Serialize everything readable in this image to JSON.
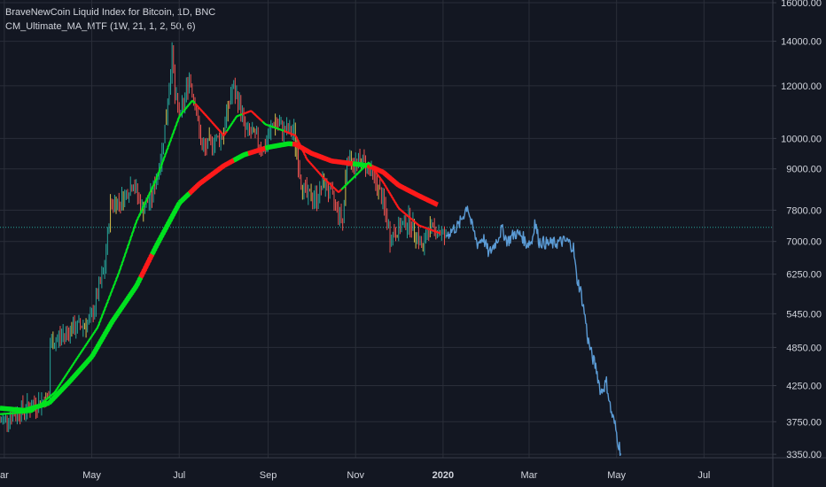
{
  "header": {
    "title": "BraveNewCoin Liquid Index for Bitcoin, 1D, BNC",
    "indicator": "CM_Ultimate_MA_MTF (1W, 21, 1, 2, 50, 6)"
  },
  "colors": {
    "background": "#131722",
    "grid": "#2a2e39",
    "text": "#d1d4dc",
    "candle_up": "#26a69a",
    "candle_down": "#ef5350",
    "candle_yellow": "#d6c14a",
    "ma_green": "#00e21f",
    "ma_red": "#ff1a1a",
    "projection": "#5b9bd5",
    "price_line": "#26a69a"
  },
  "chart_data": {
    "type": "line",
    "scale": "log",
    "x_ticks": [
      {
        "label": "ar",
        "date": "2019-03-01"
      },
      {
        "label": "May",
        "date": "2019-05-01"
      },
      {
        "label": "Jul",
        "date": "2019-07-01"
      },
      {
        "label": "Sep",
        "date": "2019-09-01"
      },
      {
        "label": "Nov",
        "date": "2019-11-01"
      },
      {
        "label": "2020",
        "date": "2020-01-01",
        "bold": true
      },
      {
        "label": "Mar",
        "date": "2020-03-01"
      },
      {
        "label": "May",
        "date": "2020-05-01"
      },
      {
        "label": "Jul",
        "date": "2020-07-01"
      }
    ],
    "y_ticks": [
      "16000.00",
      "14000.00",
      "12000.00",
      "10000.00",
      "9000.00",
      "7800.00",
      "7000.00",
      "6250.00",
      "5450.00",
      "4850.00",
      "4250.00",
      "3750.00",
      "3350.00"
    ],
    "xlim": [
      "2019-02-26",
      "2020-08-18"
    ],
    "ylim": [
      3310,
      16150
    ],
    "price_line_value": 7350,
    "series": [
      {
        "kind": "price",
        "points": [
          [
            "2019-02-26",
            3750
          ],
          [
            "2019-03-10",
            3880
          ],
          [
            "2019-03-25",
            4000
          ],
          [
            "2019-04-01",
            4100
          ],
          [
            "2019-04-02",
            4900
          ],
          [
            "2019-04-15",
            5150
          ],
          [
            "2019-04-30",
            5300
          ],
          [
            "2019-05-10",
            6400
          ],
          [
            "2019-05-14",
            7950
          ],
          [
            "2019-05-22",
            8100
          ],
          [
            "2019-05-30",
            8600
          ],
          [
            "2019-06-05",
            7800
          ],
          [
            "2019-06-12",
            8200
          ],
          [
            "2019-06-18",
            9300
          ],
          [
            "2019-06-22",
            10800
          ],
          [
            "2019-06-26",
            13500
          ],
          [
            "2019-06-28",
            11500
          ],
          [
            "2019-07-02",
            10800
          ],
          [
            "2019-07-08",
            12400
          ],
          [
            "2019-07-12",
            11300
          ],
          [
            "2019-07-17",
            9600
          ],
          [
            "2019-07-24",
            9900
          ],
          [
            "2019-07-31",
            10100
          ],
          [
            "2019-08-07",
            11900
          ],
          [
            "2019-08-12",
            11300
          ],
          [
            "2019-08-16",
            10300
          ],
          [
            "2019-08-22",
            10100
          ],
          [
            "2019-08-29",
            9600
          ],
          [
            "2019-09-05",
            10600
          ],
          [
            "2019-09-12",
            10300
          ],
          [
            "2019-09-19",
            10200
          ],
          [
            "2019-09-24",
            8600
          ],
          [
            "2019-09-28",
            8200
          ],
          [
            "2019-10-05",
            8150
          ],
          [
            "2019-10-10",
            8600
          ],
          [
            "2019-10-18",
            7950
          ],
          [
            "2019-10-23",
            7500
          ],
          [
            "2019-10-26",
            9400
          ],
          [
            "2019-10-31",
            9150
          ],
          [
            "2019-11-07",
            9250
          ],
          [
            "2019-11-14",
            8700
          ],
          [
            "2019-11-20",
            8050
          ],
          [
            "2019-11-25",
            7100
          ],
          [
            "2019-12-02",
            7350
          ],
          [
            "2019-12-08",
            7550
          ],
          [
            "2019-12-15",
            7100
          ],
          [
            "2019-12-18",
            6750
          ],
          [
            "2019-12-21",
            7300
          ],
          [
            "2019-12-28",
            7300
          ],
          [
            "2020-01-03",
            7100
          ]
        ]
      },
      {
        "kind": "ma_slow",
        "points": [
          [
            "2019-02-26",
            3930
          ],
          [
            "2019-03-15",
            3900
          ],
          [
            "2019-04-01",
            4000
          ],
          [
            "2019-04-15",
            4300
          ],
          [
            "2019-05-01",
            4700
          ],
          [
            "2019-05-15",
            5300
          ],
          [
            "2019-06-01",
            6000
          ],
          [
            "2019-06-15",
            6900
          ],
          [
            "2019-07-01",
            8000
          ],
          [
            "2019-07-15",
            8550
          ],
          [
            "2019-08-01",
            9100
          ],
          [
            "2019-08-15",
            9450
          ],
          [
            "2019-09-01",
            9700
          ],
          [
            "2019-09-15",
            9820
          ],
          [
            "2019-09-20",
            9800
          ],
          [
            "2019-10-01",
            9500
          ],
          [
            "2019-10-15",
            9250
          ],
          [
            "2019-11-01",
            9150
          ],
          [
            "2019-11-10",
            9100
          ],
          [
            "2019-11-20",
            8900
          ],
          [
            "2019-12-01",
            8500
          ],
          [
            "2019-12-15",
            8200
          ],
          [
            "2019-12-28",
            7950
          ]
        ],
        "colors_by_date": [
          [
            "2019-02-26",
            "green"
          ],
          [
            "2019-06-04",
            "red"
          ],
          [
            "2019-06-12",
            "green"
          ],
          [
            "2019-07-08",
            "red"
          ],
          [
            "2019-08-08",
            "green"
          ],
          [
            "2019-08-18",
            "red"
          ],
          [
            "2019-08-30",
            "green"
          ],
          [
            "2019-09-18",
            "red"
          ],
          [
            "2019-10-30",
            "green"
          ],
          [
            "2019-11-09",
            "red"
          ]
        ]
      },
      {
        "kind": "ma_fast",
        "points": [
          [
            "2019-02-26",
            3850
          ],
          [
            "2019-03-20",
            3880
          ],
          [
            "2019-04-05",
            4150
          ],
          [
            "2019-04-20",
            4650
          ],
          [
            "2019-05-05",
            5200
          ],
          [
            "2019-05-20",
            6300
          ],
          [
            "2019-06-01",
            7500
          ],
          [
            "2019-06-15",
            8700
          ],
          [
            "2019-07-01",
            10800
          ],
          [
            "2019-07-10",
            11400
          ],
          [
            "2019-07-20",
            10800
          ],
          [
            "2019-08-01",
            10100
          ],
          [
            "2019-08-10",
            10800
          ],
          [
            "2019-08-20",
            11000
          ],
          [
            "2019-08-30",
            10500
          ],
          [
            "2019-09-10",
            10300
          ],
          [
            "2019-09-20",
            10100
          ],
          [
            "2019-09-28",
            9300
          ],
          [
            "2019-10-10",
            8700
          ],
          [
            "2019-10-20",
            8300
          ],
          [
            "2019-11-01",
            8800
          ],
          [
            "2019-11-10",
            9200
          ],
          [
            "2019-11-20",
            8600
          ],
          [
            "2019-12-01",
            7850
          ],
          [
            "2019-12-15",
            7400
          ],
          [
            "2019-12-30",
            7200
          ]
        ],
        "colors_by_date": [
          [
            "2019-02-26",
            "green"
          ],
          [
            "2019-07-12",
            "red"
          ],
          [
            "2019-08-03",
            "green"
          ],
          [
            "2019-08-14",
            "red"
          ],
          [
            "2019-08-28",
            "green"
          ],
          [
            "2019-09-12",
            "red"
          ],
          [
            "2019-10-22",
            "green"
          ],
          [
            "2019-11-12",
            "red"
          ]
        ]
      },
      {
        "kind": "projection",
        "points": [
          [
            "2020-01-03",
            7150
          ],
          [
            "2020-01-08",
            7300
          ],
          [
            "2020-01-12",
            7400
          ],
          [
            "2020-01-15",
            7650
          ],
          [
            "2020-01-18",
            7950
          ],
          [
            "2020-01-21",
            7400
          ],
          [
            "2020-01-25",
            6950
          ],
          [
            "2020-01-29",
            7100
          ],
          [
            "2020-02-02",
            6700
          ],
          [
            "2020-02-07",
            7000
          ],
          [
            "2020-02-11",
            7300
          ],
          [
            "2020-02-15",
            7000
          ],
          [
            "2020-02-20",
            7200
          ],
          [
            "2020-02-25",
            7150
          ],
          [
            "2020-02-28",
            6950
          ],
          [
            "2020-03-03",
            7000
          ],
          [
            "2020-03-05",
            7500
          ],
          [
            "2020-03-08",
            7000
          ],
          [
            "2020-03-14",
            6950
          ],
          [
            "2020-03-18",
            6950
          ],
          [
            "2020-03-24",
            7000
          ],
          [
            "2020-03-28",
            7000
          ],
          [
            "2020-04-01",
            6850
          ],
          [
            "2020-04-03",
            6200
          ],
          [
            "2020-04-06",
            5900
          ],
          [
            "2020-04-09",
            5400
          ],
          [
            "2020-04-11",
            5000
          ],
          [
            "2020-04-14",
            4700
          ],
          [
            "2020-04-17",
            4500
          ],
          [
            "2020-04-20",
            4150
          ],
          [
            "2020-04-24",
            4300
          ],
          [
            "2020-04-27",
            3900
          ],
          [
            "2020-04-30",
            3700
          ],
          [
            "2020-05-02",
            3500
          ],
          [
            "2020-05-04",
            3380
          ]
        ]
      }
    ]
  }
}
